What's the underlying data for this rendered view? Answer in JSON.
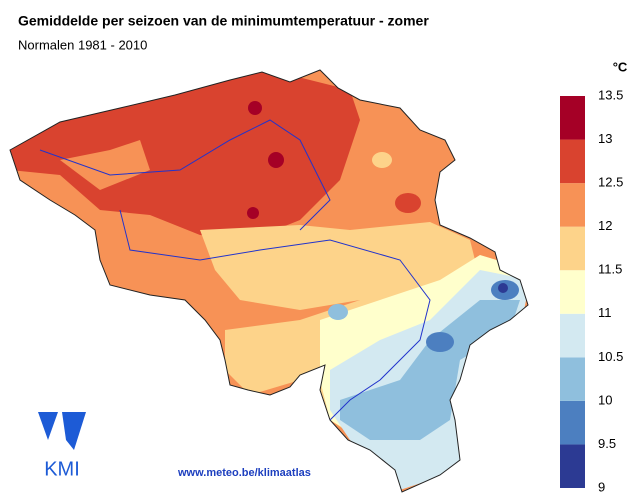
{
  "header": {
    "title": "Gemiddelde per seizoen van de minimumtemperatuur - zomer",
    "subtitle": "Normalen 1981 - 2010"
  },
  "colorbar": {
    "unit": "°C",
    "ticks": [
      9,
      9.5,
      10,
      10.5,
      11,
      11.5,
      12,
      12.5,
      13,
      13.5
    ],
    "colors": [
      "#2c3a93",
      "#4c7fc0",
      "#8fbfdd",
      "#d3e9f1",
      "#ffffcc",
      "#fdd38a",
      "#f79256",
      "#d9432f",
      "#a50026"
    ]
  },
  "logo": {
    "text": "KMI"
  },
  "footer": {
    "url": "www.meteo.be/klimaatlas"
  }
}
